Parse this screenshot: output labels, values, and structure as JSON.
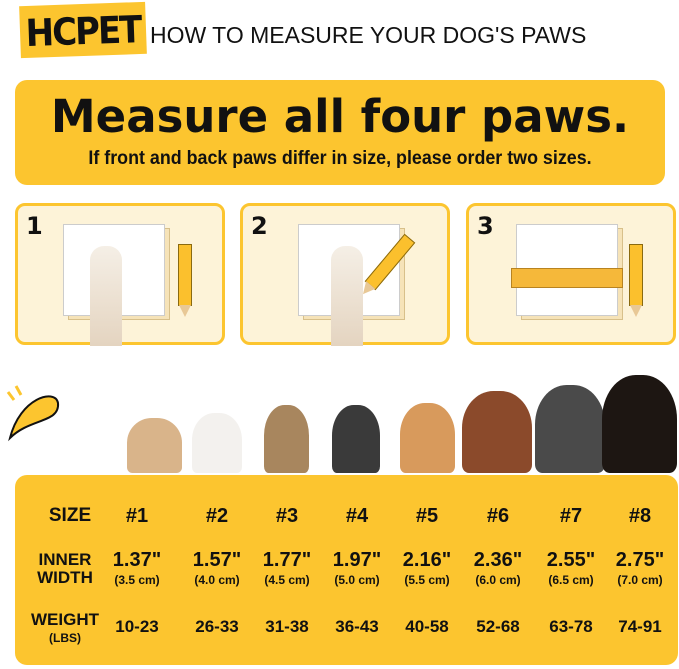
{
  "brand": "HCPET",
  "title": "HOW TO MEASURE YOUR DOG'S PAWS",
  "banner": {
    "headline": "Measure all four paws.",
    "subtext": "If front and back paws differ in size, please order two sizes."
  },
  "steps": [
    {
      "number": "1"
    },
    {
      "number": "2"
    },
    {
      "number": "3"
    }
  ],
  "colors": {
    "accent": "#FCC52F",
    "panel": "#FDF3D8"
  },
  "size_chart": {
    "labels": {
      "size": "SIZE",
      "inner_width_1": "INNER",
      "inner_width_2": "WIDTH",
      "weight_1": "WEIGHT",
      "weight_2": "(LBS)"
    },
    "columns": [
      {
        "size": "#1",
        "inch": "1.37\"",
        "cm": "(3.5 cm)",
        "weight": "10-23"
      },
      {
        "size": "#2",
        "inch": "1.57\"",
        "cm": "(4.0 cm)",
        "weight": "26-33"
      },
      {
        "size": "#3",
        "inch": "1.77\"",
        "cm": "(4.5 cm)",
        "weight": "31-38"
      },
      {
        "size": "#4",
        "inch": "1.97\"",
        "cm": "(5.0 cm)",
        "weight": "36-43"
      },
      {
        "size": "#5",
        "inch": "2.16\"",
        "cm": "(5.5 cm)",
        "weight": "40-58"
      },
      {
        "size": "#6",
        "inch": "2.36\"",
        "cm": "(6.0 cm)",
        "weight": "52-68"
      },
      {
        "size": "#7",
        "inch": "2.55\"",
        "cm": "(6.5 cm)",
        "weight": "63-78"
      },
      {
        "size": "#8",
        "inch": "2.75\"",
        "cm": "(7.0 cm)",
        "weight": "74-91"
      }
    ]
  }
}
